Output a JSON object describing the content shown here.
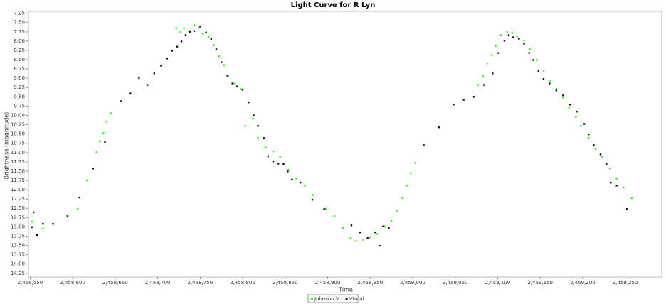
{
  "chart_data": {
    "type": "scatter",
    "title": "Light Curve for R Lyn",
    "x_label": "Time",
    "y_label": "Brightness (magnitude)",
    "xlim": [
      2458548,
      2459293
    ],
    "ylim": [
      7.2,
      14.35
    ],
    "y_inverted": true,
    "grid": false,
    "legend": "bottom",
    "xticks": [
      {
        "value": 2458550,
        "label": "2,458,550"
      },
      {
        "value": 2458600,
        "label": "2,458,600"
      },
      {
        "value": 2458650,
        "label": "2,458,650"
      },
      {
        "value": 2458700,
        "label": "2,458,700"
      },
      {
        "value": 2458750,
        "label": "2,458,750"
      },
      {
        "value": 2458800,
        "label": "2,458,800"
      },
      {
        "value": 2458850,
        "label": "2,458,850"
      },
      {
        "value": 2458900,
        "label": "2,458,900"
      },
      {
        "value": 2458950,
        "label": "2,458,950"
      },
      {
        "value": 2459000,
        "label": "2,459,000"
      },
      {
        "value": 2459050,
        "label": "2,459,050"
      },
      {
        "value": 2459100,
        "label": "2,459,100"
      },
      {
        "value": 2459150,
        "label": "2,459,150"
      },
      {
        "value": 2459200,
        "label": "2,459,200"
      },
      {
        "value": 2459250,
        "label": "2,459,250"
      }
    ],
    "yticks": [
      7.25,
      {
        "value": 7.5,
        "label": "7.50"
      },
      7.75,
      {
        "value": 8,
        "label": "8.00"
      },
      8.25,
      {
        "value": 8.5,
        "label": "8.50"
      },
      8.75,
      {
        "value": 9,
        "label": "9.00"
      },
      9.25,
      {
        "value": 9.5,
        "label": "9.50"
      },
      9.75,
      {
        "value": 10,
        "label": "10.00"
      },
      10.25,
      {
        "value": 10.5,
        "label": "10.50"
      },
      10.75,
      {
        "value": 11,
        "label": "11.00"
      },
      11.25,
      {
        "value": 11.5,
        "label": "11.50"
      },
      11.75,
      {
        "value": 12,
        "label": "12.00"
      },
      12.25,
      {
        "value": 12.5,
        "label": "12.50"
      },
      12.75,
      {
        "value": 13,
        "label": "13.00"
      },
      13.25,
      {
        "value": 13.5,
        "label": "13.50"
      },
      13.75,
      {
        "value": 14,
        "label": "14.00"
      },
      14.25
    ],
    "series": [
      {
        "name": "Johnson V",
        "color": "#33ee22",
        "x": [
          2458552,
          2458565,
          2458606,
          2458617,
          2458628,
          2458632,
          2458636,
          2458640,
          2458645,
          2458722,
          2458727,
          2458731,
          2458737,
          2458743,
          2458748,
          2458753,
          2458760,
          2458766,
          2458772,
          2458778,
          2458783,
          2458790,
          2458798,
          2458803,
          2458812,
          2458818,
          2458827,
          2458836,
          2458844,
          2458854,
          2458863,
          2458873,
          2458883,
          2458898,
          2458908,
          2458918,
          2458927,
          2458933,
          2458942,
          2458950,
          2458958,
          2458967,
          2458975,
          2458982,
          2458988,
          2458993,
          2458998,
          2459003,
          2459077,
          2459083,
          2459088,
          2459093,
          2459098,
          2459104,
          2459111,
          2459117,
          2459123,
          2459131,
          2459138,
          2459146,
          2459154,
          2459162,
          2459169,
          2459177,
          2459184,
          2459192,
          2459198,
          2459207,
          2459215,
          2459223,
          2459232,
          2459240,
          2459248,
          2459258
        ],
        "values": [
          12.86,
          13.05,
          12.52,
          11.75,
          10.99,
          10.7,
          10.48,
          10.17,
          9.94,
          7.65,
          7.75,
          7.65,
          7.73,
          7.57,
          7.65,
          7.8,
          7.88,
          8.11,
          8.41,
          8.64,
          8.95,
          9.14,
          9.29,
          10.28,
          10.09,
          10.61,
          10.86,
          10.97,
          11.12,
          11.47,
          11.7,
          11.89,
          12.14,
          12.52,
          12.71,
          13.03,
          13.3,
          13.38,
          13.35,
          13.28,
          13.19,
          12.99,
          12.84,
          12.57,
          12.23,
          11.89,
          11.56,
          11.28,
          9.18,
          8.95,
          8.6,
          8.38,
          8.13,
          7.84,
          7.75,
          7.78,
          7.88,
          7.99,
          8.22,
          8.51,
          8.8,
          9.08,
          9.29,
          9.52,
          9.79,
          10.04,
          10.28,
          10.61,
          10.9,
          11.12,
          11.43,
          11.7,
          11.94,
          12.23
        ]
      },
      {
        "name": "Visual",
        "color": "#111111",
        "x": [
          2458552,
          2458554,
          2458558,
          2458565,
          2458577,
          2458594,
          2458608,
          2458624,
          2458638,
          2458657,
          2458668,
          2458678,
          2458688,
          2458696,
          2458704,
          2458711,
          2458717,
          2458723,
          2458728,
          2458733,
          2458738,
          2458743,
          2458750,
          2458757,
          2458763,
          2458769,
          2458775,
          2458782,
          2458788,
          2458793,
          2458800,
          2458807,
          2458813,
          2458818,
          2458825,
          2458830,
          2458836,
          2458842,
          2458848,
          2458853,
          2458858,
          2458868,
          2458882,
          2458896,
          2458928,
          2458938,
          2458947,
          2458956,
          2458961,
          2458965,
          2458972,
          2459013,
          2459031,
          2459048,
          2459060,
          2459072,
          2459084,
          2459094,
          2459101,
          2459108,
          2459113,
          2459118,
          2459125,
          2459131,
          2459137,
          2459142,
          2459148,
          2459154,
          2459161,
          2459169,
          2459177,
          2459185,
          2459193,
          2459202,
          2459207,
          2459213,
          2459221,
          2459228,
          2459233,
          2459240,
          2459252
        ],
        "values": [
          13.01,
          12.61,
          13.22,
          12.92,
          12.92,
          12.71,
          12.21,
          11.43,
          10.72,
          9.62,
          9.41,
          8.99,
          9.18,
          8.87,
          8.66,
          8.47,
          8.26,
          8.15,
          8.01,
          7.84,
          7.75,
          7.73,
          7.61,
          7.77,
          7.94,
          8.22,
          8.57,
          8.93,
          9.14,
          9.22,
          9.31,
          9.65,
          10.0,
          10.28,
          10.61,
          11.1,
          11.24,
          11.3,
          11.31,
          11.51,
          11.73,
          11.81,
          12.27,
          12.52,
          12.96,
          13.15,
          13.3,
          13.15,
          13.51,
          12.99,
          13.03,
          10.8,
          10.32,
          9.71,
          9.58,
          9.5,
          9.18,
          8.87,
          8.32,
          7.99,
          7.84,
          7.9,
          7.94,
          8.07,
          8.32,
          8.51,
          8.8,
          9.02,
          9.14,
          9.33,
          9.46,
          9.71,
          9.9,
          10.23,
          10.51,
          10.8,
          11.05,
          11.31,
          11.81,
          11.89,
          12.52
        ]
      }
    ]
  }
}
